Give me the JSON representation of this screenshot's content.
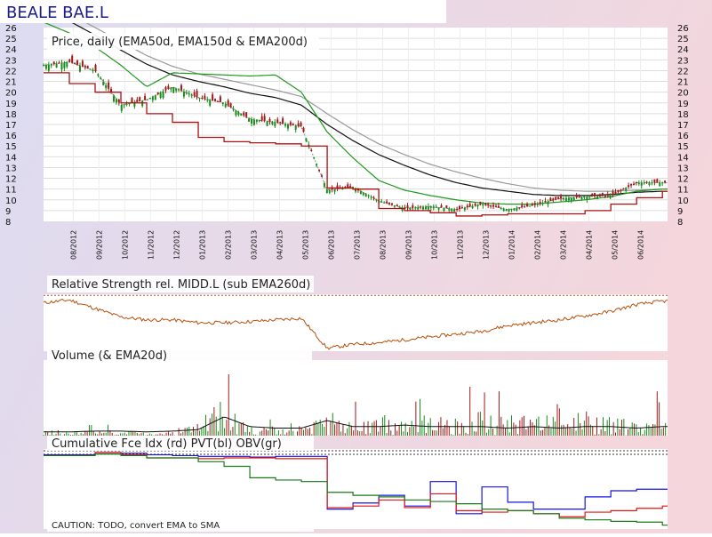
{
  "ticker_title": "BEALE BAE.L",
  "caution": "CAUTION: TODO, convert EMA to SMA",
  "colors": {
    "bg_left": "#dcdcf2",
    "bg_right": "#f4d6dc",
    "up_bar": "#1a8a1a",
    "down_bar": "#a01818",
    "ema50": "#1e9a1e",
    "ema150": "#111111",
    "ema200": "#999999",
    "stop_line": "#b01010",
    "rs_line": "#b8500a",
    "pvt": "#1515e0",
    "cfi": "#e01515",
    "obv": "#1a7a1a"
  },
  "chart_data": [
    {
      "type": "candlestick",
      "title": "Price, daily (EMA50d, EMA150d & EMA200d)",
      "ylim": [
        8,
        26
      ],
      "y_ticks": [
        8,
        9,
        10,
        11,
        12,
        13,
        14,
        15,
        16,
        17,
        18,
        19,
        20,
        21,
        22,
        23,
        24,
        25,
        26
      ],
      "x_ticks": [
        "08/2012",
        "09/2012",
        "10/2012",
        "11/2012",
        "12/2012",
        "01/2013",
        "02/2013",
        "03/2013",
        "04/2013",
        "05/2013",
        "06/2013",
        "07/2013",
        "08/2013",
        "09/2013",
        "10/2013",
        "11/2013",
        "12/2013",
        "01/2014",
        "02/2014",
        "03/2014",
        "04/2014",
        "05/2014",
        "06/2014"
      ],
      "months": [
        -1,
        0,
        1,
        2,
        3,
        4,
        5,
        6,
        7,
        8,
        9,
        10,
        11,
        12,
        13,
        14,
        15,
        16,
        17,
        18,
        19,
        20,
        21,
        22,
        23
      ],
      "close": [
        22.5,
        22.8,
        22.0,
        18.8,
        19.3,
        20.5,
        19.5,
        19.0,
        17.5,
        17.2,
        16.8,
        10.9,
        11.2,
        9.9,
        9.2,
        9.4,
        9.1,
        9.6,
        9.1,
        9.5,
        10.1,
        10.3,
        10.4,
        11.6,
        11.6
      ],
      "ema50": [
        26.5,
        25.5,
        24.2,
        22.5,
        20.5,
        21.8,
        21.7,
        21.6,
        21.5,
        21.6,
        20.0,
        16.3,
        13.9,
        11.8,
        10.9,
        10.4,
        10.0,
        9.7,
        9.6,
        9.6,
        9.8,
        10.0,
        10.3,
        10.8,
        11.0
      ],
      "ema150": [
        28.0,
        26.6,
        25.3,
        23.9,
        22.6,
        21.6,
        21.0,
        20.5,
        19.9,
        19.5,
        18.8,
        17.0,
        15.5,
        14.2,
        13.2,
        12.3,
        11.6,
        11.1,
        10.8,
        10.5,
        10.4,
        10.4,
        10.5,
        10.7,
        10.8
      ],
      "ema200": [
        28.6,
        27.3,
        26.0,
        24.7,
        23.4,
        22.4,
        21.7,
        21.2,
        20.7,
        20.2,
        19.6,
        18.0,
        16.5,
        15.2,
        14.2,
        13.3,
        12.6,
        12.0,
        11.5,
        11.1,
        10.9,
        10.8,
        10.8,
        10.9,
        11.0
      ],
      "stop": [
        21.8,
        20.8,
        20.0,
        19.0,
        18.0,
        17.2,
        15.8,
        15.4,
        15.3,
        15.2,
        15.0,
        11.1,
        11.0,
        9.2,
        9.0,
        8.8,
        8.5,
        8.6,
        8.7,
        8.7,
        8.7,
        9.0,
        9.6,
        10.2,
        10.8
      ]
    },
    {
      "type": "line",
      "title": "Relative Strength rel. MIDD.L (sub EMA260d)",
      "months": [
        -1,
        0,
        1,
        2,
        3,
        4,
        5,
        6,
        7,
        8,
        9,
        10,
        11,
        12,
        13,
        14,
        15,
        16,
        17,
        18,
        19,
        20,
        21,
        22,
        23
      ],
      "values": [
        0.85,
        0.9,
        0.75,
        0.6,
        0.55,
        0.55,
        0.5,
        0.5,
        0.52,
        0.55,
        0.58,
        0.05,
        0.12,
        0.15,
        0.2,
        0.25,
        0.3,
        0.35,
        0.45,
        0.5,
        0.55,
        0.62,
        0.7,
        0.82,
        0.88
      ],
      "ylim": [
        0,
        1
      ],
      "reference_level": 0.98
    },
    {
      "type": "bar",
      "title": "Volume (& EMA20d)",
      "months": [
        -1,
        0,
        1,
        2,
        3,
        4,
        5,
        6,
        7,
        8,
        9,
        10,
        11,
        12,
        13,
        14,
        15,
        16,
        17,
        18,
        19,
        20,
        21,
        22,
        23
      ],
      "volume": [
        0.15,
        0.1,
        0.14,
        0.12,
        0.1,
        0.12,
        0.35,
        0.85,
        0.3,
        0.25,
        0.3,
        0.55,
        0.4,
        0.45,
        0.5,
        0.45,
        0.5,
        0.55,
        0.45,
        0.5,
        0.4,
        0.55,
        0.45,
        0.3,
        0.5
      ],
      "ema20": [
        0.05,
        0.05,
        0.06,
        0.06,
        0.05,
        0.06,
        0.08,
        0.25,
        0.12,
        0.1,
        0.1,
        0.2,
        0.12,
        0.12,
        0.14,
        0.12,
        0.12,
        0.12,
        0.1,
        0.12,
        0.1,
        0.12,
        0.12,
        0.1,
        0.12
      ],
      "ylim": [
        0,
        1
      ]
    },
    {
      "type": "line",
      "title": "Cumulative Fce Idx (rd) PVT(bl) OBV(gr)",
      "months": [
        -1,
        0,
        1,
        2,
        3,
        4,
        5,
        6,
        7,
        8,
        9,
        10,
        11,
        12,
        13,
        14,
        15,
        16,
        17,
        18,
        19,
        20,
        21,
        22,
        23
      ],
      "series": [
        {
          "name": "PVT",
          "values": [
            0.97,
            0.97,
            1.0,
            0.99,
            0.97,
            0.96,
            0.95,
            0.95,
            0.94,
            0.95,
            0.95,
            0.26,
            0.34,
            0.44,
            0.3,
            0.62,
            0.2,
            0.55,
            0.35,
            0.26,
            0.26,
            0.42,
            0.5,
            0.52,
            0.52
          ]
        },
        {
          "name": "CFI",
          "values": [
            0.96,
            0.96,
            1.0,
            0.97,
            0.93,
            0.93,
            0.92,
            0.93,
            0.93,
            0.92,
            0.92,
            0.28,
            0.3,
            0.38,
            0.28,
            0.46,
            0.24,
            0.22,
            0.24,
            0.2,
            0.16,
            0.22,
            0.24,
            0.27,
            0.3
          ]
        },
        {
          "name": "OBV",
          "values": [
            0.96,
            0.96,
            0.98,
            0.96,
            0.93,
            0.93,
            0.88,
            0.82,
            0.67,
            0.64,
            0.62,
            0.48,
            0.44,
            0.42,
            0.38,
            0.36,
            0.33,
            0.26,
            0.24,
            0.2,
            0.14,
            0.12,
            0.1,
            0.09,
            0.05
          ]
        }
      ],
      "ylim": [
        0,
        1
      ],
      "reference_level": 1.0
    }
  ]
}
